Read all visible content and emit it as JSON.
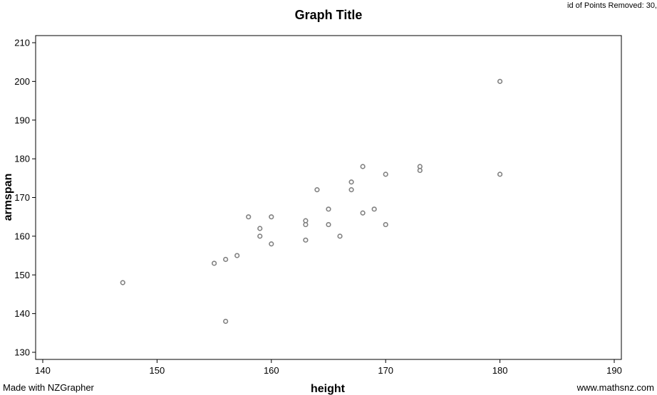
{
  "header": {
    "title": "Graph Title",
    "corner_note": "id of Points Removed: 30,"
  },
  "footer": {
    "left": "Made with NZGrapher",
    "right": "www.mathsnz.com"
  },
  "chart_data": {
    "type": "scatter",
    "title": "Graph Title",
    "xlabel": "height",
    "ylabel": "armspan",
    "xlim": [
      140,
      190
    ],
    "ylim": [
      130,
      210
    ],
    "xticks": [
      140,
      150,
      160,
      170,
      180,
      190
    ],
    "yticks": [
      130,
      140,
      150,
      160,
      170,
      180,
      190,
      200,
      210
    ],
    "grid": false,
    "point_color": "#808080",
    "points": [
      {
        "x": 147,
        "y": 148
      },
      {
        "x": 155,
        "y": 153
      },
      {
        "x": 156,
        "y": 154
      },
      {
        "x": 156,
        "y": 138
      },
      {
        "x": 157,
        "y": 155
      },
      {
        "x": 158,
        "y": 165
      },
      {
        "x": 159,
        "y": 162
      },
      {
        "x": 159,
        "y": 160
      },
      {
        "x": 160,
        "y": 165
      },
      {
        "x": 160,
        "y": 158
      },
      {
        "x": 163,
        "y": 164
      },
      {
        "x": 163,
        "y": 163
      },
      {
        "x": 163,
        "y": 159
      },
      {
        "x": 164,
        "y": 172
      },
      {
        "x": 165,
        "y": 167
      },
      {
        "x": 165,
        "y": 163
      },
      {
        "x": 166,
        "y": 160
      },
      {
        "x": 167,
        "y": 174
      },
      {
        "x": 167,
        "y": 172
      },
      {
        "x": 168,
        "y": 178
      },
      {
        "x": 168,
        "y": 166
      },
      {
        "x": 169,
        "y": 167
      },
      {
        "x": 170,
        "y": 176
      },
      {
        "x": 170,
        "y": 163
      },
      {
        "x": 173,
        "y": 178
      },
      {
        "x": 173,
        "y": 177
      },
      {
        "x": 180,
        "y": 200
      },
      {
        "x": 180,
        "y": 176
      }
    ]
  }
}
